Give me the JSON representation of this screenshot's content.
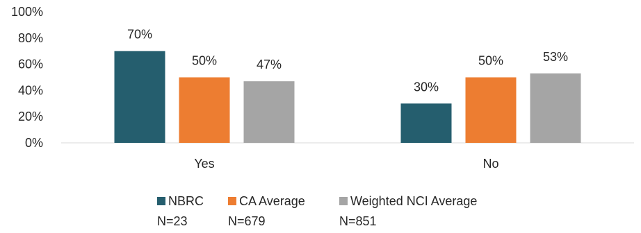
{
  "chart_data": {
    "type": "bar",
    "categories": [
      "Yes",
      "No"
    ],
    "series": [
      {
        "name": "NBRC",
        "subtitle": "N=23",
        "values": [
          70,
          30
        ],
        "labels": [
          "70%",
          "30%"
        ],
        "color": "#255E6E"
      },
      {
        "name": "CA Average",
        "subtitle": "N=679",
        "values": [
          50,
          50
        ],
        "labels": [
          "50%",
          "50%"
        ],
        "color": "#ED7D31"
      },
      {
        "name": "Weighted NCI Average",
        "subtitle": "N=851",
        "values": [
          47,
          53
        ],
        "labels": [
          "47%",
          "53%"
        ],
        "color": "#A5A5A5"
      }
    ],
    "ylim": [
      0,
      100
    ],
    "yticks": [
      "0%",
      "20%",
      "40%",
      "60%",
      "80%",
      "100%"
    ],
    "grid": false,
    "legend_position": "bottom"
  }
}
